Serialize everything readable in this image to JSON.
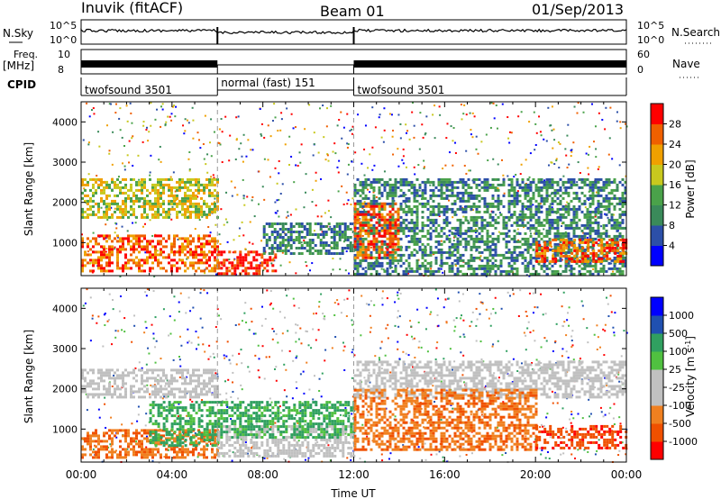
{
  "header": {
    "station": "Inuvik (fitACF)",
    "beam": "Beam 01",
    "date": "01/Sep/2013"
  },
  "noise_panel": {
    "left_label": "N.Sky",
    "right_label": "N.Search",
    "left_ticks": [
      "10^5",
      "10^0"
    ],
    "right_ticks": [
      "10^5",
      "10^0"
    ]
  },
  "freq_panel": {
    "left_label_1": "Freq.",
    "left_label_2": "[MHz]",
    "right_label": "Nave",
    "left_ticks": [
      "10",
      "8"
    ],
    "right_ticks": [
      "60",
      "0"
    ]
  },
  "cpid": {
    "label": "CPID",
    "segments": [
      {
        "name": "twofsound 3501",
        "start_hour": 0,
        "end_hour": 6
      },
      {
        "name": "normal (fast) 151",
        "start_hour": 6,
        "end_hour": 12
      },
      {
        "name": "twofsound 3501",
        "start_hour": 12,
        "end_hour": 24
      }
    ]
  },
  "chart_data": [
    {
      "type": "heatmap",
      "quantity": "Power",
      "ylabel": "Slant Range [km]",
      "ylim": [
        180,
        4500
      ],
      "yticks": [
        "1000",
        "2000",
        "3000",
        "4000"
      ],
      "xlim": [
        0,
        24
      ],
      "colorbar_label": "Power [dB]",
      "colorbar_ticks": [
        "28",
        "24",
        "20",
        "16",
        "12",
        "8",
        "4"
      ],
      "colorscale": [
        "#0000ff",
        "#2c4fa8",
        "#3a8a5a",
        "#4aa24a",
        "#c8c81e",
        "#f0a000",
        "#f06000",
        "#ff0000"
      ],
      "features": [
        {
          "hours": [
            0,
            6
          ],
          "range_km": [
            300,
            1200
          ],
          "level": "high"
        },
        {
          "hours": [
            0,
            6
          ],
          "range_km": [
            1600,
            2600
          ],
          "level": "medium"
        },
        {
          "hours": [
            6,
            8.5
          ],
          "range_km": [
            200,
            800
          ],
          "level": "max"
        },
        {
          "hours": [
            8,
            12
          ],
          "range_km": [
            700,
            1500
          ],
          "level": "low"
        },
        {
          "hours": [
            12,
            24
          ],
          "range_km": [
            200,
            2600
          ],
          "level": "low"
        },
        {
          "hours": [
            12,
            14
          ],
          "range_km": [
            600,
            2000
          ],
          "level": "high"
        },
        {
          "hours": [
            20,
            24
          ],
          "range_km": [
            500,
            1100
          ],
          "level": "high"
        }
      ]
    },
    {
      "type": "heatmap",
      "quantity": "Velocity",
      "ylabel": "Slant Range [km]",
      "ylim": [
        180,
        4500
      ],
      "yticks": [
        "1000",
        "2000",
        "3000",
        "4000"
      ],
      "xlim": [
        0,
        24
      ],
      "colorbar_label": "Velocity [m s^-1]",
      "colorbar_ticks": [
        "1000",
        "500",
        "100",
        "25",
        "-25",
        "-100",
        "-500",
        "-1000"
      ],
      "colorscale": [
        "#ff0000",
        "#f05000",
        "#f08020",
        "#c0c0c0",
        "#c0c0c0",
        "#50c040",
        "#30a060",
        "#2050b0",
        "#0000ff"
      ],
      "features": [
        {
          "hours": [
            0,
            6
          ],
          "range_km": [
            300,
            1000
          ],
          "level": "negative"
        },
        {
          "hours": [
            3,
            6
          ],
          "range_km": [
            600,
            1700
          ],
          "level": "positive"
        },
        {
          "hours": [
            0,
            6
          ],
          "range_km": [
            1800,
            2500
          ],
          "level": "ground"
        },
        {
          "hours": [
            6,
            12
          ],
          "range_km": [
            300,
            1100
          ],
          "level": "ground"
        },
        {
          "hours": [
            6,
            12
          ],
          "range_km": [
            800,
            1700
          ],
          "level": "positive"
        },
        {
          "hours": [
            12,
            24
          ],
          "range_km": [
            1800,
            2700
          ],
          "level": "ground"
        },
        {
          "hours": [
            12,
            20
          ],
          "range_km": [
            500,
            2000
          ],
          "level": "negative"
        },
        {
          "hours": [
            20,
            24
          ],
          "range_km": [
            500,
            1100
          ],
          "level": "strong-negative"
        }
      ]
    }
  ],
  "x_axis": {
    "ticks": [
      "00:00",
      "04:00",
      "08:00",
      "12:00",
      "16:00",
      "20:00",
      "00:00"
    ],
    "label": "Time UT"
  }
}
